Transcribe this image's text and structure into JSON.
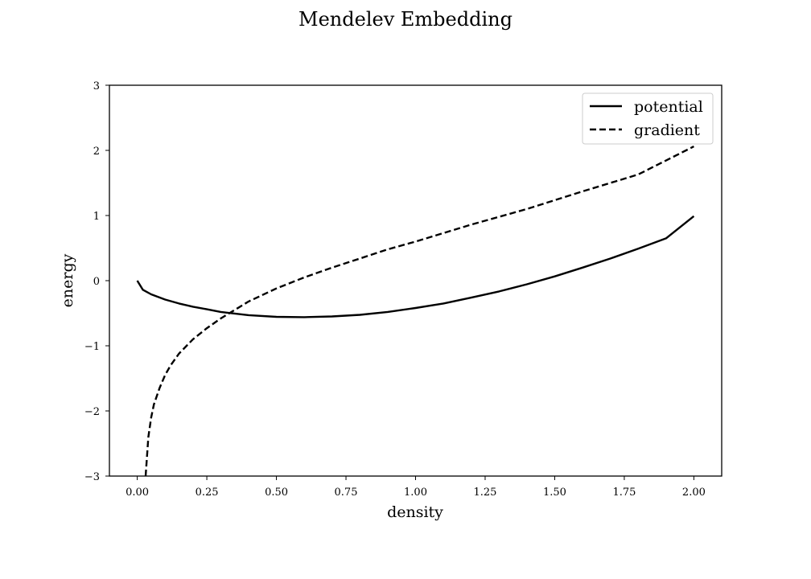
{
  "chart_data": {
    "type": "line",
    "title": "Mendelev Embedding",
    "xlabel": "density",
    "ylabel": "energy",
    "xlim": [
      -0.1,
      2.1
    ],
    "ylim": [
      -3,
      3
    ],
    "xticks": [
      0.0,
      0.25,
      0.5,
      0.75,
      1.0,
      1.25,
      1.5,
      1.75,
      2.0
    ],
    "xtick_labels": [
      "0.00",
      "0.25",
      "0.50",
      "0.75",
      "1.00",
      "1.25",
      "1.50",
      "1.75",
      "2.00"
    ],
    "yticks": [
      -3,
      -2,
      -1,
      0,
      1,
      2,
      3
    ],
    "ytick_labels": [
      "−3",
      "−2",
      "−1",
      "0",
      "1",
      "2",
      "3"
    ],
    "grid": false,
    "legend": {
      "position": "top-right"
    },
    "series": [
      {
        "name": "potential",
        "style": "solid",
        "color": "#000000",
        "x": [
          0.0,
          0.02,
          0.05,
          0.1,
          0.15,
          0.2,
          0.25,
          0.3,
          0.4,
          0.5,
          0.6,
          0.7,
          0.8,
          0.9,
          1.0,
          1.1,
          1.2,
          1.3,
          1.4,
          1.5,
          1.6,
          1.7,
          1.8,
          1.9,
          2.0
        ],
        "y": [
          0.0,
          -0.14,
          -0.21,
          -0.29,
          -0.35,
          -0.4,
          -0.44,
          -0.48,
          -0.53,
          -0.555,
          -0.56,
          -0.55,
          -0.525,
          -0.48,
          -0.42,
          -0.35,
          -0.26,
          -0.165,
          -0.055,
          0.065,
          0.2,
          0.34,
          0.49,
          0.65,
          0.99
        ]
      },
      {
        "name": "gradient",
        "style": "dashed",
        "color": "#000000",
        "x": [
          0.03,
          0.04,
          0.05,
          0.06,
          0.08,
          0.1,
          0.12,
          0.15,
          0.2,
          0.25,
          0.3,
          0.4,
          0.5,
          0.6,
          0.7,
          0.8,
          0.9,
          1.0,
          1.2,
          1.4,
          1.6,
          1.8,
          2.0
        ],
        "y": [
          -3.0,
          -2.4,
          -2.1,
          -1.9,
          -1.65,
          -1.45,
          -1.3,
          -1.12,
          -0.9,
          -0.73,
          -0.58,
          -0.32,
          -0.12,
          0.05,
          0.2,
          0.34,
          0.48,
          0.6,
          0.86,
          1.1,
          1.37,
          1.63,
          2.06
        ]
      }
    ]
  }
}
